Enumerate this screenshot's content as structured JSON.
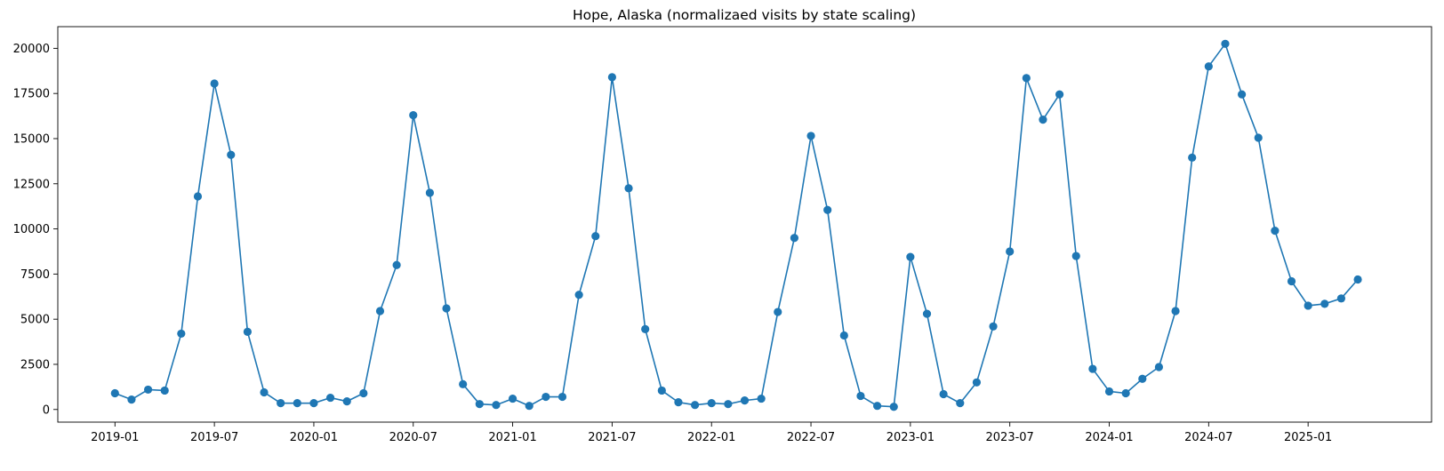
{
  "chart_data": {
    "type": "line",
    "title": "Hope, Alaska (normalizaed visits by state scaling)",
    "xlabel": "",
    "ylabel": "",
    "marker": "circle",
    "grid": false,
    "legend": "none",
    "colors": {
      "series": "#1f77b4"
    },
    "x_ticks": [
      "2019-01",
      "2019-07",
      "2020-01",
      "2020-07",
      "2021-01",
      "2021-07",
      "2022-01",
      "2022-07",
      "2023-01",
      "2023-07",
      "2024-01",
      "2024-07",
      "2025-01"
    ],
    "y_ticks": [
      "0",
      "2500",
      "5000",
      "7500",
      "10000",
      "12500",
      "15000",
      "17500",
      "20000"
    ],
    "xlim": [
      "2018-09",
      "2025-08"
    ],
    "ylim": [
      -700,
      21200
    ],
    "series": [
      {
        "x": [
          "2019-01",
          "2019-02",
          "2019-03",
          "2019-04",
          "2019-05",
          "2019-06",
          "2019-07",
          "2019-08",
          "2019-09",
          "2019-10",
          "2019-11",
          "2019-12",
          "2020-01",
          "2020-02",
          "2020-03",
          "2020-04",
          "2020-05",
          "2020-06",
          "2020-07",
          "2020-08",
          "2020-09",
          "2020-10",
          "2020-11",
          "2020-12",
          "2021-01",
          "2021-02",
          "2021-03",
          "2021-04",
          "2021-05",
          "2021-06",
          "2021-07",
          "2021-08",
          "2021-09",
          "2021-10",
          "2021-11",
          "2021-12",
          "2022-01",
          "2022-02",
          "2022-03",
          "2022-04",
          "2022-05",
          "2022-06",
          "2022-07",
          "2022-08",
          "2022-09",
          "2022-10",
          "2022-11",
          "2022-12",
          "2023-01",
          "2023-02",
          "2023-03",
          "2023-04",
          "2023-05",
          "2023-06",
          "2023-07",
          "2023-08",
          "2023-09",
          "2023-10",
          "2023-11",
          "2023-12",
          "2024-01",
          "2024-02",
          "2024-03",
          "2024-04",
          "2024-05",
          "2024-06",
          "2024-07",
          "2024-08",
          "2024-09",
          "2024-10",
          "2024-11",
          "2024-12",
          "2025-01",
          "2025-02",
          "2025-03",
          "2025-04"
        ],
        "y": [
          900,
          550,
          1100,
          1050,
          4200,
          11800,
          18050,
          14100,
          4300,
          950,
          350,
          350,
          350,
          650,
          450,
          900,
          5450,
          8000,
          16300,
          12000,
          5600,
          1400,
          300,
          250,
          600,
          200,
          700,
          700,
          6350,
          9600,
          18400,
          12250,
          4450,
          1050,
          400,
          250,
          350,
          300,
          500,
          600,
          5400,
          9500,
          15150,
          11050,
          4100,
          750,
          200,
          150,
          8450,
          5300,
          850,
          350,
          1500,
          4600,
          8750,
          18350,
          16050,
          17450,
          8500,
          2250,
          1000,
          900,
          1700,
          2350,
          5450,
          13950,
          19000,
          20250,
          17450,
          15050,
          9900,
          7100,
          5750,
          5850,
          6150,
          7200
        ]
      }
    ]
  }
}
